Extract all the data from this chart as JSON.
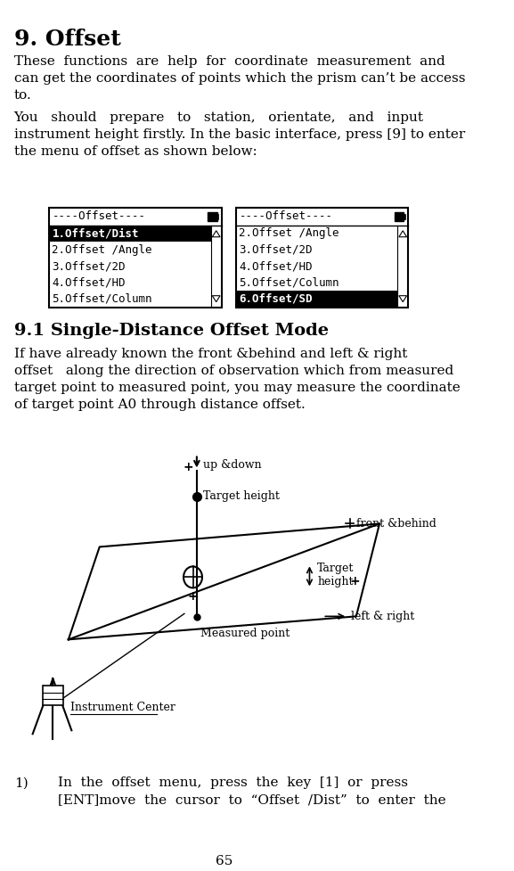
{
  "title": "9. Offset",
  "section_title": "9.1 Single-Distance Offset Mode",
  "para1_lines": [
    "These  functions  are  help  for  coordinate  measurement  and",
    "can get the coordinates of points which the prism can’t be access",
    "to."
  ],
  "para2_lines": [
    "You   should   prepare   to   station,   orientate,   and   input",
    "instrument height firstly. In the basic interface, press [9] to enter",
    "the menu of offset as shown below:"
  ],
  "para3_lines": [
    "If have already known the front &behind and left & right",
    "offset   along the direction of observation which from measured",
    "target point to measured point, you may measure the coordinate",
    "of target point A0 through distance offset."
  ],
  "para4_num": "1)",
  "para4_lines": [
    "In  the  offset  menu,  press  the  key  [1]  or  press",
    "[ENT]move  the  cursor  to  “Offset  /Dist”  to  enter  the"
  ],
  "page_num": "65",
  "menu1_title": "----Offset----",
  "menu1_items": [
    "1.Offset/Dist",
    "2.Offset /Angle",
    "3.Offset/2D",
    "4.Offset/HD",
    "5.Offset/Column"
  ],
  "menu1_selected": 0,
  "menu2_title": "----Offset----",
  "menu2_items": [
    "2.Offset /Angle",
    "3.Offset/2D",
    "4.Offset/HD",
    "5.Offset/Column",
    "6.Offset/SD"
  ],
  "menu2_selected": 4,
  "bg_color": "#ffffff",
  "text_color": "#000000"
}
